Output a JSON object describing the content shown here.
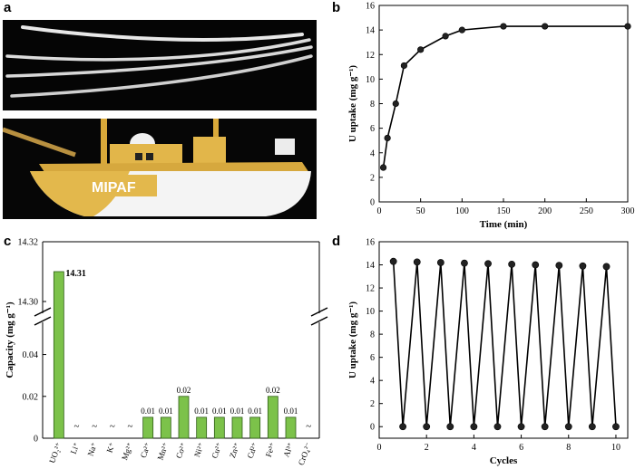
{
  "panels": {
    "a": "a",
    "b": "b",
    "c": "c",
    "d": "d"
  },
  "photo": {
    "boat_label": "MIPAF"
  },
  "colors": {
    "bar_fill": "#7cc24a",
    "bar_stroke": "#2f5e16",
    "line": "#000000",
    "marker": "#222222"
  },
  "chart_data": [
    {
      "panel": "b",
      "type": "line",
      "xlabel": "Time (min)",
      "ylabel": "U uptake (mg g⁻¹)",
      "xlim": [
        0,
        300
      ],
      "ylim": [
        0,
        16
      ],
      "xticks": [
        0,
        50,
        100,
        150,
        200,
        250,
        300
      ],
      "yticks": [
        0,
        2,
        4,
        6,
        8,
        10,
        12,
        14,
        16
      ],
      "x": [
        5,
        10,
        20,
        30,
        50,
        80,
        100,
        150,
        200,
        300
      ],
      "y": [
        2.8,
        5.2,
        8.0,
        11.1,
        12.4,
        13.5,
        14.0,
        14.3,
        14.3,
        14.3
      ]
    },
    {
      "panel": "c",
      "type": "bar",
      "ylabel": "Capacity (mg g⁻¹)",
      "yticks_lower": [
        "0",
        "0.02",
        "0.04"
      ],
      "yticks_upper": [
        "14.30",
        "14.32"
      ],
      "axis_break": true,
      "categories": [
        "UO₂²⁺",
        "Li⁺",
        "Na⁺",
        "K⁺",
        "Mg²⁺",
        "Ca²⁺",
        "Mn²⁺",
        "Co²⁺",
        "Ni²⁺",
        "Cu²⁺",
        "Zn²⁺",
        "Cd²⁺",
        "Fe³⁺",
        "Al³⁺",
        "CrO₄²⁻"
      ],
      "values": [
        14.31,
        null,
        null,
        null,
        null,
        0.01,
        0.01,
        0.02,
        0.01,
        0.01,
        0.01,
        0.01,
        0.02,
        0.01,
        null
      ],
      "labels": [
        "14.31",
        "~",
        "~",
        "~",
        "~",
        "0.01",
        "0.01",
        "0.02",
        "0.01",
        "0.01",
        "0.01",
        "0.01",
        "0.02",
        "0.01",
        "~"
      ]
    },
    {
      "panel": "d",
      "type": "line",
      "xlabel": "Cycles",
      "ylabel": "U uptake (mg g⁻¹)",
      "xlim": [
        0,
        10.5
      ],
      "ylim": [
        -1,
        16
      ],
      "xticks": [
        0,
        2,
        4,
        6,
        8,
        10
      ],
      "yticks": [
        0,
        2,
        4,
        6,
        8,
        10,
        12,
        14,
        16
      ],
      "x": [
        0.6,
        1.0,
        1.6,
        2.0,
        2.6,
        3.0,
        3.6,
        4.0,
        4.6,
        5.0,
        5.6,
        6.0,
        6.6,
        7.0,
        7.6,
        8.0,
        8.6,
        9.0,
        9.6,
        10.0
      ],
      "y": [
        14.3,
        0,
        14.25,
        0,
        14.2,
        0,
        14.15,
        0,
        14.1,
        0,
        14.05,
        0,
        14.0,
        0,
        13.95,
        0,
        13.9,
        0,
        13.85,
        0
      ]
    }
  ]
}
